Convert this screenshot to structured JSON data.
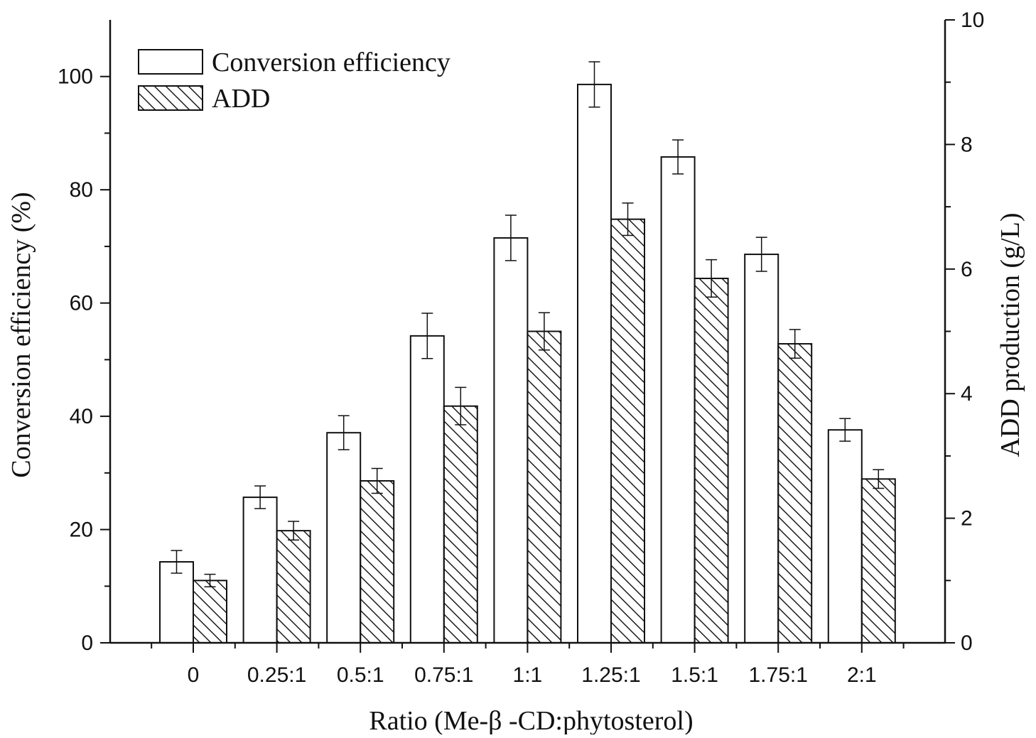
{
  "chart_data": {
    "type": "bar",
    "categories": [
      "0",
      "0.25:1",
      "0.5:1",
      "0.75:1",
      "1:1",
      "1.25:1",
      "1.5:1",
      "1.75:1",
      "2:1"
    ],
    "xlabel": "Ratio (Me-β  -CD:phytosterol)",
    "ylabel": "Conversion efficiency (%)",
    "y2label": "ADD production (g/L)",
    "ylim": [
      0,
      110
    ],
    "y2lim": [
      0,
      10
    ],
    "yticks": [
      "0",
      "20",
      "40",
      "60",
      "80",
      "100"
    ],
    "y2ticks": [
      "0",
      "2",
      "4",
      "6",
      "8",
      "10"
    ],
    "legend_position": "top-left",
    "series": [
      {
        "name": "Conversion efficiency",
        "axis": "left",
        "fill": "plain",
        "values": [
          14.3,
          25.7,
          37.1,
          54.2,
          71.5,
          98.6,
          85.8,
          68.6,
          37.6
        ],
        "errors": [
          2.0,
          2.0,
          3.0,
          4.0,
          4.0,
          4.0,
          3.0,
          3.0,
          2.0
        ]
      },
      {
        "name": "ADD",
        "axis": "right",
        "fill": "hatched",
        "values": [
          1.0,
          1.8,
          2.6,
          3.8,
          5.0,
          6.8,
          5.85,
          4.8,
          2.63
        ],
        "errors": [
          0.1,
          0.15,
          0.2,
          0.3,
          0.3,
          0.26,
          0.3,
          0.23,
          0.15
        ]
      }
    ]
  }
}
